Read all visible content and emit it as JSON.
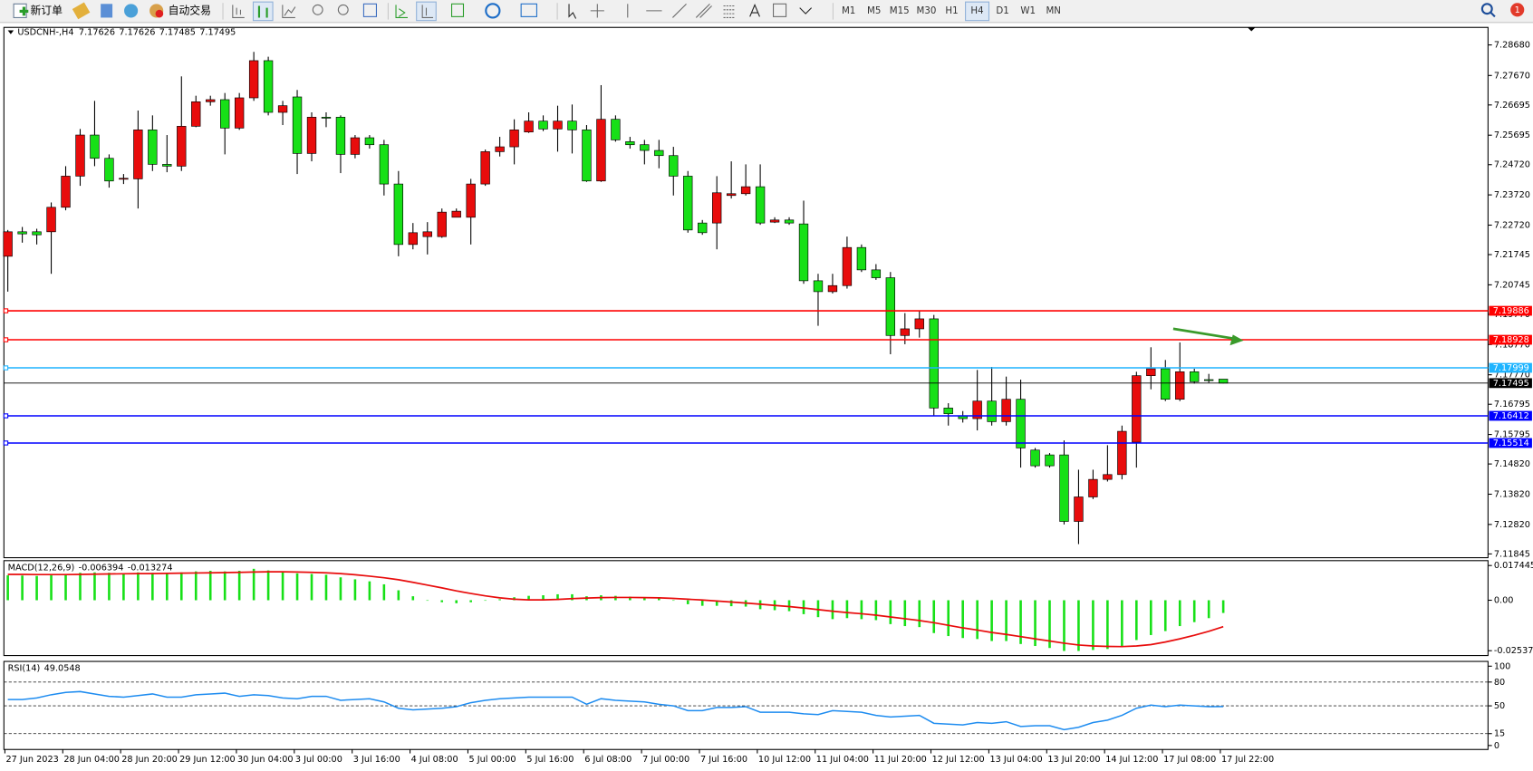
{
  "toolbar": {
    "buttons": [
      {
        "label": "新订单"
      },
      {
        "label": "自动交易"
      }
    ],
    "timeframes": [
      {
        "label": "M1",
        "active": false
      },
      {
        "label": "M5",
        "active": false
      },
      {
        "label": "M15",
        "active": false
      },
      {
        "label": "M30",
        "active": false
      },
      {
        "label": "H1",
        "active": false
      },
      {
        "label": "H4",
        "active": true
      },
      {
        "label": "D1",
        "active": false
      },
      {
        "label": "W1",
        "active": false
      },
      {
        "label": "MN",
        "active": false
      }
    ],
    "notifications": 1
  },
  "chart_data": [
    {
      "type": "candlestick",
      "title": "USDCNH-,H4",
      "x_labels": [
        "27 Jun 2023",
        "28 Jun 04:00",
        "28 Jun 20:00",
        "29 Jun 12:00",
        "30 Jun 04:00",
        "3 Jul 00:00",
        "3 Jul 16:00",
        "4 Jul 08:00",
        "5 Jul 00:00",
        "5 Jul 16:00",
        "6 Jul 08:00",
        "7 Jul 00:00",
        "7 Jul 16:00",
        "10 Jul 12:00",
        "11 Jul 04:00",
        "11 Jul 20:00",
        "12 Jul 12:00",
        "13 Jul 04:00",
        "13 Jul 20:00",
        "14 Jul 12:00",
        "17 Jul 08:00",
        "17 Jul 22:00"
      ],
      "open": [
        7.2169,
        7.225,
        7.225,
        7.225,
        7.2331,
        7.2434,
        7.257,
        7.2493,
        7.2425,
        7.2425,
        7.2587,
        7.2473,
        7.2467,
        7.2599,
        7.268,
        7.2687,
        7.2593,
        7.2693,
        7.2816,
        7.2645,
        7.2696,
        7.2509,
        7.2629,
        7.2629,
        7.2506,
        7.2561,
        7.2538,
        7.2408,
        7.2208,
        7.2234,
        7.2234,
        7.2298,
        7.2298,
        7.2408,
        7.2515,
        7.2531,
        7.258,
        7.2616,
        7.259,
        7.2616,
        7.2587,
        7.2418,
        7.2622,
        7.2548,
        7.2538,
        7.2519,
        7.2502,
        7.2434,
        7.2279,
        7.2279,
        7.237,
        7.2376,
        7.2399,
        7.2282,
        7.2289,
        7.2276,
        7.2088,
        7.2052,
        7.2072,
        7.2198,
        7.2124,
        7.2098,
        7.1907,
        7.1929,
        7.1962,
        7.1667,
        7.1641,
        7.1632,
        7.169,
        7.1622,
        7.1696,
        7.1528,
        7.1512,
        7.1512,
        7.1292,
        7.1373,
        7.1431,
        7.1447,
        7.1554,
        7.1774,
        7.1797,
        7.1696,
        7.1787,
        7.1761,
        7.17626
      ],
      "high": [
        7.2256,
        7.2266,
        7.226,
        7.2347,
        7.2467,
        7.259,
        7.2683,
        7.2506,
        7.2441,
        7.2651,
        7.2635,
        7.257,
        7.2764,
        7.27,
        7.27,
        7.2709,
        7.2709,
        7.2845,
        7.2829,
        7.2683,
        7.2719,
        7.2645,
        7.2645,
        7.2635,
        7.257,
        7.257,
        7.2554,
        7.2451,
        7.2279,
        7.2282,
        7.2327,
        7.2327,
        7.2425,
        7.2522,
        7.2564,
        7.2622,
        7.2645,
        7.2635,
        7.2667,
        7.2671,
        7.2603,
        7.2735,
        7.2635,
        7.2564,
        7.2554,
        7.2554,
        7.2531,
        7.2451,
        7.2289,
        7.2434,
        7.2483,
        7.2473,
        7.2473,
        7.2298,
        7.2298,
        7.2353,
        7.2111,
        7.2111,
        7.2234,
        7.2208,
        7.2143,
        7.2117,
        7.1981,
        7.1988,
        7.1975,
        7.1683,
        7.1657,
        7.1793,
        7.1803,
        7.1771,
        7.1761,
        7.1535,
        7.1518,
        7.156,
        7.1463,
        7.1463,
        7.1544,
        7.1609,
        7.1787,
        7.1868,
        7.1826,
        7.1884,
        7.1797,
        7.178,
        7.17626
      ],
      "low": [
        7.2052,
        7.2214,
        7.2208,
        7.2111,
        7.2321,
        7.2402,
        7.2467,
        7.2396,
        7.2408,
        7.2327,
        7.2451,
        7.2447,
        7.2451,
        7.2596,
        7.2667,
        7.2506,
        7.2587,
        7.2683,
        7.2635,
        7.2603,
        7.2441,
        7.2483,
        7.2596,
        7.2444,
        7.2493,
        7.2525,
        7.237,
        7.2169,
        7.2192,
        7.2175,
        7.223,
        7.2298,
        7.2208,
        7.2402,
        7.2499,
        7.2473,
        7.2577,
        7.2583,
        7.2515,
        7.2509,
        7.2415,
        7.2415,
        7.2548,
        7.2525,
        7.2473,
        7.246,
        7.237,
        7.2247,
        7.224,
        7.2192,
        7.236,
        7.237,
        7.2273,
        7.2279,
        7.2273,
        7.2078,
        7.1939,
        7.2046,
        7.2062,
        7.2117,
        7.2091,
        7.1845,
        7.1878,
        7.19,
        7.1641,
        7.1609,
        7.1619,
        7.1593,
        7.1609,
        7.1609,
        7.147,
        7.147,
        7.147,
        7.1282,
        7.1217,
        7.1366,
        7.1424,
        7.1431,
        7.147,
        7.1729,
        7.169,
        7.169,
        7.1748,
        7.1751,
        7.17485
      ],
      "close": [
        7.225,
        7.2243,
        7.224,
        7.2331,
        7.2434,
        7.257,
        7.2493,
        7.2418,
        7.2427,
        7.2587,
        7.2473,
        7.2467,
        7.2599,
        7.268,
        7.2687,
        7.2593,
        7.2693,
        7.2816,
        7.2645,
        7.2667,
        7.2509,
        7.2629,
        7.2627,
        7.2506,
        7.2561,
        7.2538,
        7.2408,
        7.2208,
        7.2247,
        7.225,
        7.2315,
        7.2318,
        7.2408,
        7.2515,
        7.2531,
        7.2587,
        7.2616,
        7.259,
        7.2616,
        7.2587,
        7.2418,
        7.2622,
        7.2554,
        7.2538,
        7.2519,
        7.2502,
        7.2434,
        7.2256,
        7.2247,
        7.2379,
        7.2376,
        7.2399,
        7.2279,
        7.2289,
        7.2279,
        7.2088,
        7.2052,
        7.2072,
        7.2198,
        7.2124,
        7.2098,
        7.1907,
        7.1929,
        7.1962,
        7.1667,
        7.1648,
        7.1632,
        7.169,
        7.1622,
        7.1696,
        7.1535,
        7.1476,
        7.1476,
        7.1292,
        7.1373,
        7.1431,
        7.1447,
        7.159,
        7.1774,
        7.1797,
        7.1696,
        7.1787,
        7.1754,
        7.1758,
        7.17495
      ],
      "up_color": "#e80c0c",
      "down_color": "#17e017",
      "ylim": [
        7.1172,
        7.2926
      ],
      "yticks": [
        {
          "value": 7.2868,
          "label": "7.28680"
        },
        {
          "value": 7.2767,
          "label": "7.27670"
        },
        {
          "value": 7.26695,
          "label": "7.26695"
        },
        {
          "value": 7.25695,
          "label": "7.25695"
        },
        {
          "value": 7.2472,
          "label": "7.24720"
        },
        {
          "value": 7.2372,
          "label": "7.23720"
        },
        {
          "value": 7.2272,
          "label": "7.22720"
        },
        {
          "value": 7.21745,
          "label": "7.21745"
        },
        {
          "value": 7.20745,
          "label": "7.20745"
        },
        {
          "value": 7.1977,
          "label": "7.19770"
        },
        {
          "value": 7.1877,
          "label": "7.18770"
        },
        {
          "value": 7.1777,
          "label": "7.17770"
        },
        {
          "value": 7.16795,
          "label": "7.16795"
        },
        {
          "value": 7.15795,
          "label": "7.15795"
        },
        {
          "value": 7.1482,
          "label": "7.14820"
        },
        {
          "value": 7.1382,
          "label": "7.13820"
        },
        {
          "value": 7.1282,
          "label": "7.12820"
        },
        {
          "value": 7.11845,
          "label": "7.11845"
        }
      ],
      "levels": [
        {
          "value": 7.19886,
          "color": "#ff0000"
        },
        {
          "value": 7.18928,
          "color": "#ff0000"
        },
        {
          "value": 7.17999,
          "color": "#1eb4ff"
        },
        {
          "value": 7.16412,
          "color": "#0000ff"
        },
        {
          "value": 7.15514,
          "color": "#0000ff"
        }
      ],
      "last_price_line": true
    },
    {
      "type": "macd",
      "title": "MACD(12,26,9)",
      "main": [
        0.0125,
        0.0124,
        0.0122,
        0.0125,
        0.013,
        0.0138,
        0.014,
        0.0138,
        0.0135,
        0.014,
        0.0138,
        0.0135,
        0.014,
        0.0145,
        0.0148,
        0.0145,
        0.0148,
        0.0158,
        0.015,
        0.0145,
        0.0135,
        0.0132,
        0.0128,
        0.0115,
        0.0105,
        0.0095,
        0.008,
        0.005,
        0.002,
        0.0,
        -0.001,
        -0.0015,
        -0.001,
        0.0,
        0.0005,
        0.0015,
        0.0022,
        0.0025,
        0.003,
        0.003,
        0.002,
        0.0025,
        0.0022,
        0.0018,
        0.0015,
        0.001,
        0.0,
        -0.002,
        -0.0028,
        -0.0028,
        -0.003,
        -0.0032,
        -0.0045,
        -0.005,
        -0.0055,
        -0.007,
        -0.0085,
        -0.0095,
        -0.009,
        -0.0095,
        -0.01,
        -0.012,
        -0.013,
        -0.0135,
        -0.0165,
        -0.018,
        -0.019,
        -0.0195,
        -0.0205,
        -0.0205,
        -0.022,
        -0.023,
        -0.024,
        -0.0255,
        -0.0255,
        -0.025,
        -0.0245,
        -0.023,
        -0.02,
        -0.0175,
        -0.0155,
        -0.013,
        -0.011,
        -0.009,
        -0.006394
      ],
      "signal": [
        0.013,
        0.013,
        0.0129,
        0.0129,
        0.0129,
        0.013,
        0.0131,
        0.0132,
        0.0133,
        0.0134,
        0.0134,
        0.0135,
        0.0136,
        0.0137,
        0.0138,
        0.0139,
        0.014,
        0.0142,
        0.0143,
        0.0143,
        0.0142,
        0.014,
        0.0138,
        0.0134,
        0.0128,
        0.0121,
        0.0113,
        0.0103,
        0.009,
        0.0076,
        0.0062,
        0.0047,
        0.0034,
        0.0022,
        0.0012,
        0.0005,
        0.0002,
        0.0002,
        0.0004,
        0.0008,
        0.0011,
        0.0013,
        0.0014,
        0.0014,
        0.0013,
        0.0012,
        0.0009,
        0.0005,
        0.0001,
        -0.0004,
        -0.0009,
        -0.0014,
        -0.002,
        -0.0026,
        -0.0032,
        -0.0039,
        -0.0047,
        -0.0055,
        -0.0062,
        -0.0068,
        -0.0075,
        -0.0084,
        -0.0093,
        -0.0102,
        -0.0113,
        -0.0126,
        -0.0139,
        -0.015,
        -0.0162,
        -0.0172,
        -0.0183,
        -0.0194,
        -0.0205,
        -0.0216,
        -0.0225,
        -0.023,
        -0.0232,
        -0.0233,
        -0.023,
        -0.0223,
        -0.021,
        -0.0194,
        -0.0176,
        -0.0156,
        -0.013274
      ],
      "main_color": "#17e017",
      "signal_color": "#e80c0c",
      "ylim": [
        -0.0278,
        0.0199
      ],
      "yticks": [
        0.017445,
        {
          "value": 0,
          "label": "0.00"
        },
        -0.025372
      ]
    },
    {
      "type": "rsi",
      "title": "RSI(14)",
      "values": [
        58,
        58,
        60,
        64,
        67,
        68,
        65,
        62,
        61,
        63,
        65,
        61,
        61,
        64,
        65,
        66,
        62,
        64,
        63,
        60,
        59,
        62,
        62,
        57,
        58,
        59,
        55,
        47,
        45,
        46,
        47,
        49,
        54,
        57,
        59,
        60,
        61,
        61,
        61,
        61,
        52,
        59,
        57,
        56,
        55,
        52,
        50,
        44,
        44,
        48,
        48,
        49,
        42,
        42,
        42,
        40,
        39,
        44,
        43,
        42,
        38,
        36,
        37,
        38,
        28,
        27,
        26,
        29,
        28,
        30,
        24,
        25,
        25,
        20,
        23,
        29,
        32,
        38,
        47,
        51,
        49,
        51,
        50,
        49,
        49.0548
      ],
      "color": "#1e8cf0",
      "ylim": [
        -5,
        106
      ],
      "yticks": [
        100,
        80,
        50,
        15,
        0
      ],
      "levels": [
        80,
        50,
        15
      ]
    }
  ]
}
